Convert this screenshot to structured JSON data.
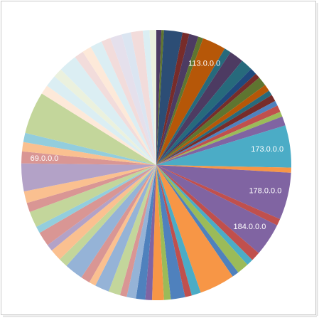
{
  "chart_data": {
    "type": "pie",
    "categories": [
      null,
      null,
      null,
      null,
      null,
      null,
      "113.0.0.0",
      null,
      null,
      null,
      null,
      null,
      null,
      null,
      null,
      null,
      null,
      null,
      null,
      null,
      "173.0.0.0",
      null,
      "178.0.0.0",
      null,
      "184.0.0.0",
      null,
      null,
      null,
      null,
      null,
      null,
      null,
      null,
      null,
      null,
      null,
      null,
      null,
      null,
      null,
      null,
      null,
      null,
      null,
      null,
      null,
      null,
      null,
      null,
      null,
      null,
      null,
      null,
      "69.0.0.0",
      null,
      null,
      null,
      null,
      null,
      null,
      null,
      null,
      null,
      null,
      null,
      null,
      null,
      null,
      null,
      null
    ],
    "values": [
      0.6,
      0.3,
      2.2,
      0.8,
      1.1,
      0.6,
      2.8,
      0.8,
      1.7,
      1.4,
      0.8,
      0.6,
      1.1,
      0.8,
      0.6,
      0.8,
      0.6,
      0.8,
      0.6,
      1.1,
      5.0,
      0.6,
      5.6,
      0.8,
      3.9,
      1.1,
      0.8,
      1.4,
      0.8,
      4.2,
      1.1,
      0.8,
      1.7,
      0.8,
      1.4,
      0.8,
      1.1,
      1.1,
      0.8,
      1.4,
      1.7,
      0.8,
      1.1,
      2.2,
      1.1,
      1.4,
      0.8,
      1.7,
      0.8,
      1.9,
      1.1,
      1.4,
      3.3,
      1.4,
      1.1,
      1.1,
      5.0,
      1.1,
      1.4,
      1.1,
      2.2,
      1.1,
      1.1,
      1.4,
      1.1,
      1.4,
      1.1,
      1.4,
      0.8,
      0.8
    ],
    "colors": [
      "#4d3b62",
      "#5f7530",
      "#2c4d75",
      "#772c2a",
      "#4d3b62",
      "#5f7530",
      "#b65708",
      "#276a7c",
      "#4d3b62",
      "#276a7c",
      "#1f497d",
      "#772c2a",
      "#5f7530",
      "#b65708",
      "#276a7c",
      "#772c2a",
      "#4f81bd",
      "#c0504d",
      "#9bbb59",
      "#8064a2",
      "#4bacc6",
      "#f79646",
      "#8064a2",
      "#c0504d",
      "#8064a2",
      "#c0504d",
      "#4bacc6",
      "#9bbb59",
      "#4f81bd",
      "#f79646",
      "#4bacc6",
      "#c0504d",
      "#4f81bd",
      "#9bbb59",
      "#f79646",
      "#8064a2",
      "#4f81bd",
      "#95b3d7",
      "#d99694",
      "#c3d69b",
      "#95b3d7",
      "#fac090",
      "#d99694",
      "#95b3d7",
      "#c3d69b",
      "#fac090",
      "#b3a2c7",
      "#d99694",
      "#93cddd",
      "#c3d69b",
      "#d99694",
      "#fac090",
      "#b3a2c7",
      "#d99694",
      "#fac090",
      "#93cddd",
      "#c3d69b",
      "#fde9d9",
      "#dbeef3",
      "#ebf1de",
      "#dbeef3",
      "#f2dcdb",
      "#fde9d9",
      "#dbeef3",
      "#f2dcdb",
      "#e5e0ec",
      "#dbe5f1",
      "#f2dcdb",
      "#dbeef3",
      "#ebf1de"
    ]
  }
}
